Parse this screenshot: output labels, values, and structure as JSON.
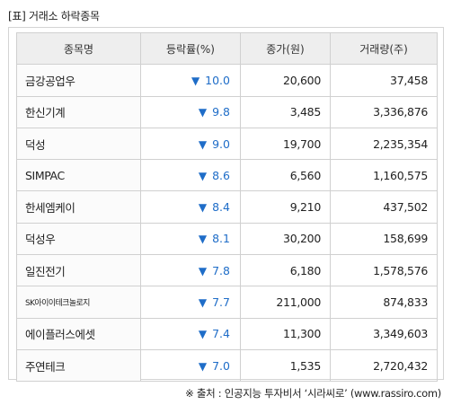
{
  "title": "[표] 거래소 하락종목",
  "headers": [
    "종목명",
    "등락률(%)",
    "종가(원)",
    "거래량(주)"
  ],
  "down_arrow": "▼",
  "rows": [
    {
      "name": "금강공업우",
      "rate": "10.0",
      "price": "20,600",
      "volume": "37,458"
    },
    {
      "name": "한신기계",
      "rate": "9.8",
      "price": "3,485",
      "volume": "3,336,876"
    },
    {
      "name": "덕성",
      "rate": "9.0",
      "price": "19,700",
      "volume": "2,235,354"
    },
    {
      "name": "SIMPAC",
      "rate": "8.6",
      "price": "6,560",
      "volume": "1,160,575"
    },
    {
      "name": "한세엠케이",
      "rate": "8.4",
      "price": "9,210",
      "volume": "437,502"
    },
    {
      "name": "덕성우",
      "rate": "8.1",
      "price": "30,200",
      "volume": "158,699"
    },
    {
      "name": "일진전기",
      "rate": "7.8",
      "price": "6,180",
      "volume": "1,578,576"
    },
    {
      "name": "SK아이이테크놀로지",
      "rate": "7.7",
      "price": "211,000",
      "volume": "874,833"
    },
    {
      "name": "에이플러스에셋",
      "rate": "7.4",
      "price": "11,300",
      "volume": "3,349,603"
    },
    {
      "name": "주연테크",
      "rate": "7.0",
      "price": "1,535",
      "volume": "2,720,432"
    }
  ],
  "source": "※ 출처 : 인공지능 투자비서 ‘시라씨로’ (www.rassiro.com)",
  "colors": {
    "down": "#1f6dc8",
    "header_bg": "#eeeeee",
    "border": "#d0d0d0"
  }
}
